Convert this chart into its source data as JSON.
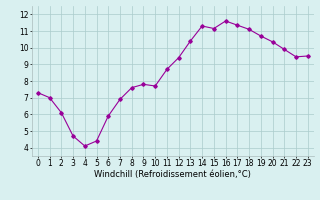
{
  "x": [
    0,
    1,
    2,
    3,
    4,
    5,
    6,
    7,
    8,
    9,
    10,
    11,
    12,
    13,
    14,
    15,
    16,
    17,
    18,
    19,
    20,
    21,
    22,
    23
  ],
  "y": [
    7.3,
    7.0,
    6.1,
    4.7,
    4.1,
    4.4,
    5.9,
    6.9,
    7.6,
    7.8,
    7.7,
    8.7,
    9.4,
    10.4,
    11.3,
    11.15,
    11.6,
    11.35,
    11.1,
    10.7,
    10.35,
    9.9,
    9.45,
    9.5
  ],
  "line_color": "#990099",
  "marker": "D",
  "marker_size": 1.8,
  "bg_color": "#d9f0f0",
  "grid_color": "#aacccc",
  "xlabel": "Windchill (Refroidissement éolien,°C)",
  "ylim": [
    3.5,
    12.5
  ],
  "xlim": [
    -0.5,
    23.5
  ],
  "yticks": [
    4,
    5,
    6,
    7,
    8,
    9,
    10,
    11,
    12
  ],
  "xticks": [
    0,
    1,
    2,
    3,
    4,
    5,
    6,
    7,
    8,
    9,
    10,
    11,
    12,
    13,
    14,
    15,
    16,
    17,
    18,
    19,
    20,
    21,
    22,
    23
  ],
  "xlabel_fontsize": 6.0,
  "tick_fontsize": 5.5
}
